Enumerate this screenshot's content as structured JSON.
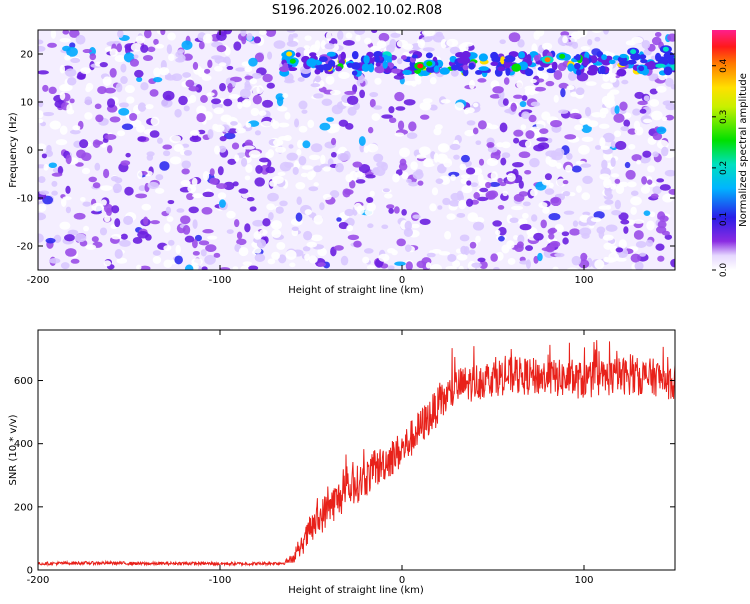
{
  "title": "S196.2026.002.10.02.R08",
  "colors": {
    "signal_line": "#e8211a",
    "axis": "#000000",
    "background": "#ffffff"
  },
  "chart_data": [
    {
      "type": "heatmap",
      "title": "S196.2026.002.10.02.R08",
      "xlabel": "Height of straight line (km)",
      "ylabel": "Frequency (Hz)",
      "xlim": [
        -200,
        150
      ],
      "ylim": [
        -25,
        25
      ],
      "x_ticks": [
        -200,
        -100,
        0,
        100
      ],
      "y_ticks": [
        -20,
        -10,
        0,
        10,
        20
      ],
      "x_tick_labels": [
        "-200",
        "-100",
        "0",
        "100"
      ],
      "y_tick_labels": [
        "-20",
        "-10",
        "0",
        "10",
        "20"
      ],
      "colorbar": {
        "label": "Normalized spectral amplitude",
        "range": [
          0.0,
          0.47
        ],
        "ticks": [
          0.0,
          0.1,
          0.2,
          0.3,
          0.4
        ],
        "tick_labels": [
          "0.0",
          "0.1",
          "0.2",
          "0.3",
          "0.4"
        ],
        "colormap": "rainbow (white-violet-blue-cyan-green-yellow-red-magenta)"
      },
      "features": [
        {
          "name": "doppler-line",
          "frequency_hz": 18,
          "x_range_km": [
            -65,
            150
          ],
          "peak_amplitude": 0.45
        },
        {
          "name": "noise-floor",
          "amplitude_range": [
            0.0,
            0.08
          ]
        }
      ]
    },
    {
      "type": "line",
      "xlabel": "Height of straight line (km)",
      "ylabel": "SNR (10 * v/v)",
      "xlim": [
        -200,
        150
      ],
      "ylim": [
        0,
        760
      ],
      "x_ticks": [
        -200,
        -100,
        0,
        100
      ],
      "y_ticks": [
        0,
        200,
        400,
        600
      ],
      "x_tick_labels": [
        "-200",
        "-100",
        "0",
        "100"
      ],
      "y_tick_labels": [
        "0",
        "200",
        "400",
        "600"
      ],
      "series": [
        {
          "name": "SNR",
          "x": [
            -200,
            -180,
            -160,
            -140,
            -120,
            -100,
            -80,
            -65,
            -58,
            -50,
            -40,
            -30,
            -20,
            -10,
            0,
            10,
            20,
            30,
            40,
            50,
            60,
            80,
            100,
            120,
            140,
            150
          ],
          "y": [
            20,
            22,
            22,
            20,
            21,
            20,
            20,
            22,
            45,
            130,
            200,
            250,
            290,
            340,
            380,
            450,
            520,
            580,
            595,
            610,
            615,
            610,
            600,
            615,
            610,
            590
          ],
          "noise_amplitude": [
            5,
            5,
            5,
            5,
            5,
            5,
            5,
            5,
            20,
            50,
            60,
            60,
            60,
            60,
            60,
            60,
            60,
            60,
            60,
            60,
            60,
            60,
            60,
            60,
            60,
            60
          ]
        }
      ]
    }
  ]
}
